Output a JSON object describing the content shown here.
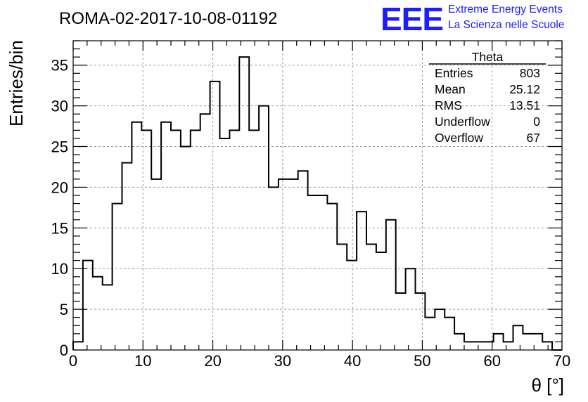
{
  "chart_data": {
    "type": "histogram",
    "title": "ROMA-02-2017-10-08-01192",
    "xlabel": "θ [°]",
    "ylabel": "Entries/bin",
    "xlim": [
      0,
      70
    ],
    "ylim": [
      0,
      38
    ],
    "x_ticks": [
      0,
      10,
      20,
      30,
      40,
      50,
      60,
      70
    ],
    "y_ticks": [
      0,
      5,
      10,
      15,
      20,
      25,
      30,
      35
    ],
    "bin_width": 1.4,
    "values": [
      1,
      11,
      9,
      8,
      18,
      23,
      28,
      27,
      21,
      28,
      27,
      25,
      27,
      29,
      33,
      26,
      27,
      36,
      27,
      30,
      20,
      21,
      21,
      22,
      19,
      19,
      18,
      13,
      11,
      17,
      13,
      12,
      16,
      7,
      10,
      7,
      4,
      5,
      4,
      2,
      1,
      1,
      1,
      2,
      1,
      3,
      2,
      2,
      1,
      0
    ],
    "line_color": "#000000",
    "grid": true,
    "stats_box": {
      "name": "Theta",
      "rows": [
        {
          "label": "Entries",
          "value": "803"
        },
        {
          "label": "Mean",
          "value": "25.12"
        },
        {
          "label": "RMS",
          "value": "13.51"
        },
        {
          "label": "Underflow",
          "value": "0"
        },
        {
          "label": "Overflow",
          "value": "67"
        }
      ]
    }
  },
  "branding": {
    "logo": "EEE",
    "line1": "Extreme Energy Events",
    "line2": "La Scienza nelle Scuole",
    "color": "#1d1dff"
  }
}
